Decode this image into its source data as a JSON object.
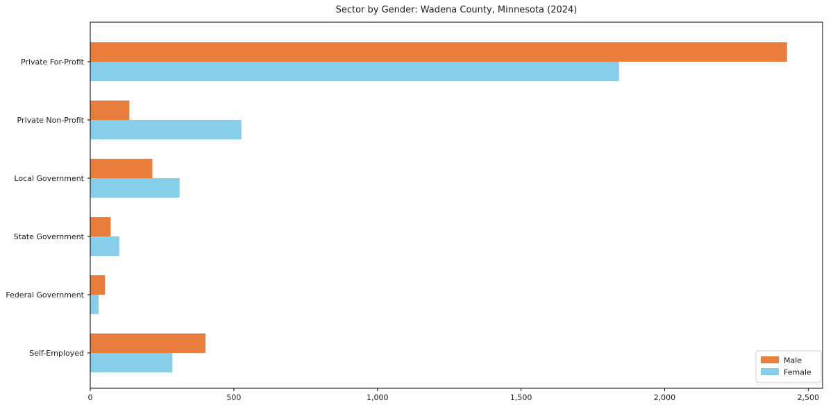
{
  "figure": {
    "background_color": "#ffffff",
    "axis_color": "#000000",
    "text_color": "#1a1a1a"
  },
  "chart_data": {
    "type": "bar",
    "orientation": "horizontal",
    "title": "Sector by Gender: Wadena County, Minnesota (2024)",
    "categories": [
      "Private For-Profit",
      "Private Non-Profit",
      "Local Government",
      "State Government",
      "Federal Government",
      "Self-Employed"
    ],
    "series": [
      {
        "name": "Male",
        "color": "#e87d3c",
        "values": [
          2425,
          135,
          215,
          70,
          50,
          400
        ]
      },
      {
        "name": "Female",
        "color": "#87ceeb",
        "values": [
          1840,
          525,
          310,
          100,
          28,
          285
        ]
      }
    ],
    "xlabel": "",
    "ylabel": "",
    "xlim": [
      0,
      2550
    ],
    "x_ticks": [
      0,
      500,
      1000,
      1500,
      2000,
      2500
    ],
    "x_tick_labels": [
      "0",
      "500",
      "1,000",
      "1,500",
      "2,000",
      "2,500"
    ],
    "grid": false,
    "legend": {
      "position": "lower-right",
      "entries": [
        "Male",
        "Female"
      ]
    }
  }
}
